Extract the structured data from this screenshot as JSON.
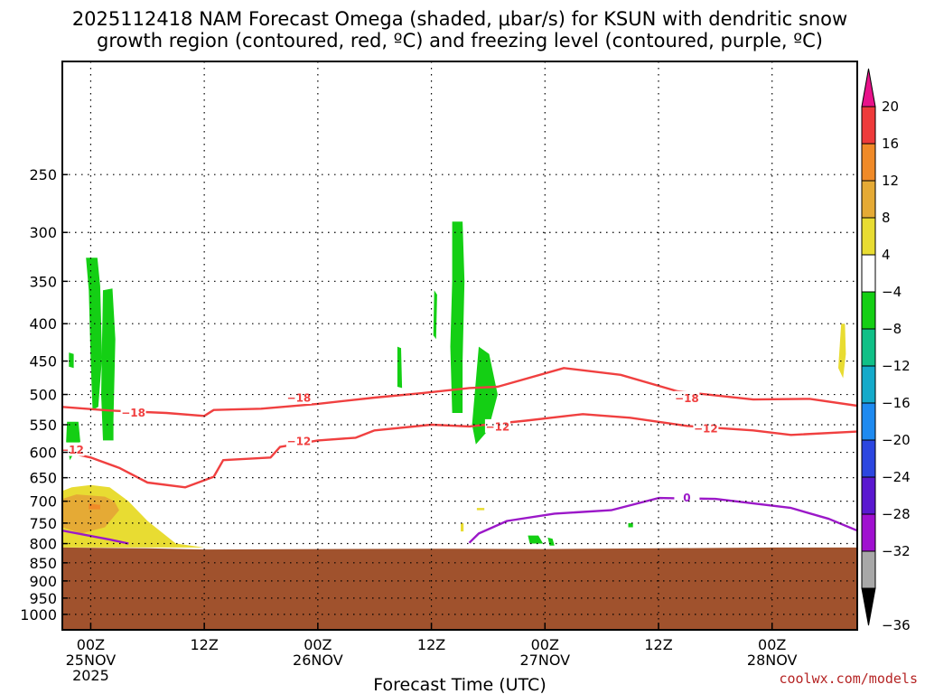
{
  "chart_data": {
    "type": "time-height cross section",
    "title_lines": [
      "2025112418 NAM Forecast Omega (shaded, μbar/s) for KSUN with dendritic snow",
      "growth region (contoured, red, ºC) and freezing level (contoured, purple, ºC)"
    ],
    "xlabel": "Forecast Time (UTC)",
    "credit": "coolwx.com/models",
    "x_range_hours_from_25NOV00Z": [
      -3,
      81
    ],
    "x_ticks": [
      {
        "hour": 0,
        "lines": [
          "00Z",
          "25NOV",
          "2025"
        ]
      },
      {
        "hour": 12,
        "lines": [
          "12Z"
        ]
      },
      {
        "hour": 24,
        "lines": [
          "00Z",
          "26NOV"
        ]
      },
      {
        "hour": 36,
        "lines": [
          "12Z"
        ]
      },
      {
        "hour": 48,
        "lines": [
          "00Z",
          "27NOV"
        ]
      },
      {
        "hour": 60,
        "lines": [
          "12Z"
        ]
      },
      {
        "hour": 72,
        "lines": [
          "00Z",
          "28NOV"
        ]
      }
    ],
    "y_axis": {
      "scale": "log pressure",
      "range_hpa": [
        1050,
        175
      ],
      "inverted": true,
      "ticks": [
        250,
        300,
        350,
        400,
        450,
        500,
        550,
        600,
        650,
        700,
        750,
        800,
        850,
        900,
        950,
        1000
      ]
    },
    "grid": "dotted",
    "colorbar": {
      "labels": [
        "20",
        "16",
        "12",
        "8",
        "4",
        "−4",
        "−8",
        "−12",
        "−16",
        "−20",
        "−24",
        "−28",
        "−32",
        "−36"
      ],
      "top_arrow_color": "#e8128a",
      "bins": [
        {
          "from": 16,
          "to": 20,
          "color": "#ee3a3a"
        },
        {
          "from": 12,
          "to": 16,
          "color": "#f08a28"
        },
        {
          "from": 8,
          "to": 12,
          "color": "#e5aa35"
        },
        {
          "from": 4,
          "to": 8,
          "color": "#e8dc32"
        },
        {
          "from": -4,
          "to": 4,
          "color": "#ffffff"
        },
        {
          "from": -8,
          "to": -4,
          "color": "#14cf14"
        },
        {
          "from": -12,
          "to": -8,
          "color": "#10c087"
        },
        {
          "from": -16,
          "to": -12,
          "color": "#14aaca"
        },
        {
          "from": -20,
          "to": -16,
          "color": "#1e8af0"
        },
        {
          "from": -24,
          "to": -20,
          "color": "#2c46e0"
        },
        {
          "from": -28,
          "to": -24,
          "color": "#5a18d0"
        },
        {
          "from": -32,
          "to": -28,
          "color": "#a010d0"
        },
        {
          "from": -36,
          "to": -32,
          "color": "#a8a8a8"
        }
      ],
      "bottom_arrow_color": "#000000"
    },
    "ground_color": "#a0522d",
    "ground_top": [
      [
        -3,
        810
      ],
      [
        6,
        812
      ],
      [
        12,
        815
      ],
      [
        24,
        814
      ],
      [
        36,
        813
      ],
      [
        48,
        814
      ],
      [
        60,
        812
      ],
      [
        72,
        810
      ],
      [
        81,
        810
      ]
    ],
    "isotherms": [
      {
        "name": "-18",
        "color": "#f04040",
        "label": "−18",
        "label_at": [
          [
            4.5,
            529
          ],
          [
            22,
            505
          ],
          [
            63,
            506
          ]
        ],
        "points": [
          [
            -3,
            520
          ],
          [
            2,
            526
          ],
          [
            8,
            530
          ],
          [
            12,
            535
          ],
          [
            13,
            525
          ],
          [
            18,
            523
          ],
          [
            24,
            515
          ],
          [
            30,
            505
          ],
          [
            35,
            498
          ],
          [
            40,
            490
          ],
          [
            43,
            488
          ],
          [
            50,
            460
          ],
          [
            56,
            470
          ],
          [
            62,
            495
          ],
          [
            70,
            508
          ],
          [
            76,
            507
          ],
          [
            81,
            518
          ]
        ]
      },
      {
        "name": "-12",
        "color": "#f04040",
        "label": "−12",
        "label_at": [
          [
            -2,
            595
          ],
          [
            22,
            579
          ],
          [
            43,
            553
          ],
          [
            65,
            556
          ]
        ],
        "points": [
          [
            -3,
            598
          ],
          [
            0,
            610
          ],
          [
            3,
            630
          ],
          [
            6,
            660
          ],
          [
            10,
            670
          ],
          [
            13,
            648
          ],
          [
            14,
            615
          ],
          [
            19,
            610
          ],
          [
            20,
            590
          ],
          [
            24,
            578
          ],
          [
            28,
            573
          ],
          [
            30,
            560
          ],
          [
            36,
            550
          ],
          [
            40,
            553
          ],
          [
            46,
            543
          ],
          [
            52,
            532
          ],
          [
            57,
            538
          ],
          [
            63,
            552
          ],
          [
            70,
            560
          ],
          [
            74,
            568
          ],
          [
            81,
            562
          ]
        ]
      },
      {
        "name": "0",
        "color": "#9b18c8",
        "label": "0",
        "label_at": [
          [
            63,
            692
          ]
        ],
        "points": [
          [
            -3,
            768
          ],
          [
            2,
            790
          ],
          [
            4,
            800
          ]
        ],
        "points2": [
          [
            40,
            798
          ],
          [
            41,
            775
          ],
          [
            44,
            745
          ],
          [
            49,
            728
          ],
          [
            55,
            720
          ],
          [
            60,
            693
          ],
          [
            66,
            695
          ],
          [
            74,
            715
          ],
          [
            78,
            740
          ],
          [
            81,
            768
          ]
        ]
      }
    ],
    "omega_regions": [
      {
        "value_bin": "-8 to -4",
        "color": "#14cf14",
        "polygons": [
          [
            [
              -0.5,
              325
            ],
            [
              0.7,
              325
            ],
            [
              1,
              355
            ],
            [
              1.2,
              445
            ],
            [
              0.8,
              520
            ],
            [
              0.2,
              525
            ],
            [
              0,
              450
            ],
            [
              -0.2,
              360
            ]
          ],
          [
            [
              1.3,
              360
            ],
            [
              2.3,
              358
            ],
            [
              2.6,
              420
            ],
            [
              2.4,
              540
            ],
            [
              2.4,
              578
            ],
            [
              1.3,
              578
            ],
            [
              1.1,
              500
            ],
            [
              1.2,
              420
            ]
          ],
          [
            [
              -2.3,
              438
            ],
            [
              -1.8,
              440
            ],
            [
              -1.8,
              460
            ],
            [
              -2.3,
              458
            ]
          ],
          [
            [
              -2.5,
              545
            ],
            [
              -1.3,
              545
            ],
            [
              -1.1,
              580
            ],
            [
              -2.2,
              615
            ],
            [
              -2.6,
              580
            ]
          ],
          [
            [
              32.4,
              430
            ],
            [
              32.8,
              432
            ],
            [
              32.9,
              490
            ],
            [
              32.4,
              488
            ]
          ],
          [
            [
              36.3,
              360
            ],
            [
              36.6,
              365
            ],
            [
              36.5,
              420
            ],
            [
              36.2,
              415
            ]
          ],
          [
            [
              38.2,
              290
            ],
            [
              39.3,
              290
            ],
            [
              39.5,
              350
            ],
            [
              39.3,
              450
            ],
            [
              39.3,
              530
            ],
            [
              38.2,
              530
            ],
            [
              38.0,
              430
            ],
            [
              38.2,
              350
            ]
          ],
          [
            [
              41.0,
              430
            ],
            [
              42.1,
              440
            ],
            [
              43.0,
              500
            ],
            [
              42.0,
              560
            ],
            [
              40.7,
              585
            ],
            [
              40.3,
              550
            ]
          ],
          [
            [
              48.3,
              785
            ],
            [
              48.8,
              788
            ],
            [
              49.0,
              805
            ],
            [
              48.5,
              805
            ]
          ],
          [
            [
              46.2,
              780
            ],
            [
              47.3,
              780
            ],
            [
              47.8,
              800
            ],
            [
              46.4,
              800
            ]
          ],
          [
            [
              56.8,
              750
            ],
            [
              57.3,
              750
            ],
            [
              57.3,
              760
            ],
            [
              56.8,
              760
            ]
          ]
        ]
      },
      {
        "value_bin": "4 to 8",
        "color": "#e8dc32",
        "polygons": [
          [
            [
              -5,
              700
            ],
            [
              -4,
              685
            ],
            [
              -2,
              670
            ],
            [
              0,
              665
            ],
            [
              2,
              670
            ],
            [
              4,
              700
            ],
            [
              6,
              745
            ],
            [
              9,
              800
            ],
            [
              12,
              810
            ],
            [
              -3,
              810
            ]
          ],
          [
            [
              40.8,
              715
            ],
            [
              41.6,
              715
            ],
            [
              41.6,
              720
            ],
            [
              40.8,
              720
            ]
          ],
          [
            [
              39.1,
              750
            ],
            [
              39.4,
              750
            ],
            [
              39.4,
              770
            ],
            [
              39.1,
              770
            ]
          ],
          [
            [
              79.3,
              400
            ],
            [
              79.7,
              400
            ],
            [
              79.8,
              440
            ],
            [
              79.5,
              475
            ],
            [
              79.0,
              460
            ]
          ]
        ]
      },
      {
        "value_bin": "8 to 12",
        "color": "#e5aa35",
        "polygons": [
          [
            [
              -3,
              695
            ],
            [
              -1.5,
              685
            ],
            [
              1.5,
              690
            ],
            [
              2.5,
              700
            ],
            [
              3,
              720
            ],
            [
              1.5,
              760
            ],
            [
              -1,
              775
            ],
            [
              -3,
              760
            ]
          ]
        ]
      },
      {
        "value_bin": "12 to 16",
        "color": "#f08a28",
        "polygons": [
          [
            [
              -0.2,
              705
            ],
            [
              1,
              708
            ],
            [
              1,
              718
            ],
            [
              -0.2,
              718
            ]
          ]
        ]
      }
    ]
  }
}
